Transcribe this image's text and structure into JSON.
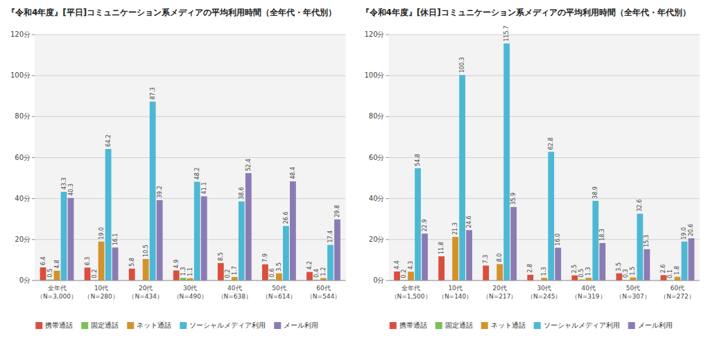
{
  "chart_data": [
    {
      "type": "bar",
      "title": "『令和4年度』[平日]コミュニケーション系メディアの平均利用時間（全年代・年代別）",
      "categories": [
        "全年代\n（N=3,000）",
        "10代\n（N=280）",
        "20代\n（N=434）",
        "30代\n（N=490）",
        "40代\n（N=638）",
        "50代\n（N=614）",
        "60代\n（N=544）"
      ],
      "series": [
        {
          "name": "携帯通話",
          "color": "#d94f3d",
          "values": [
            6.4,
            6.3,
            5.8,
            4.9,
            8.5,
            7.9,
            4.2
          ],
          "value_labels": [
            "6.4",
            "6.3",
            "5.8",
            "4.9",
            "8.5",
            "7.9",
            "4.2"
          ]
        },
        {
          "name": "固定通話",
          "color": "#7bbf5a",
          "values": [
            0.5,
            0.2,
            0.0,
            1.3,
            0.2,
            0.6,
            0.4
          ],
          "value_labels": [
            "0.5",
            "0.2",
            null,
            "1.3",
            "0.2",
            "0.6",
            "0.4"
          ]
        },
        {
          "name": "ネット通話",
          "color": "#d4922a",
          "values": [
            4.8,
            19.0,
            10.5,
            1.1,
            1.7,
            3.5,
            1.2
          ],
          "value_labels": [
            "4.8",
            "19.0",
            "10.5",
            "1.1",
            "1.7",
            "3.5",
            "1.2"
          ]
        },
        {
          "name": "ソーシャルメディア利用",
          "color": "#4db8d4",
          "values": [
            43.3,
            64.2,
            87.3,
            48.2,
            38.6,
            26.6,
            17.4
          ],
          "value_labels": [
            "43.3",
            "64.2",
            "87.3",
            "48.2",
            "38.6",
            "26.6",
            "17.4"
          ]
        },
        {
          "name": "メール利用",
          "color": "#8b7bb5",
          "values": [
            40.3,
            16.1,
            39.2,
            41.1,
            52.4,
            48.4,
            29.8
          ],
          "value_labels": [
            "40.3",
            "16.1",
            "39.2",
            "41.1",
            "52.4",
            "48.4",
            "29.8"
          ]
        }
      ],
      "ylim": [
        0,
        120
      ],
      "yticks": [
        {
          "value": 0,
          "label": "0分"
        },
        {
          "value": 20,
          "label": "20分"
        },
        {
          "value": 40,
          "label": "40分"
        },
        {
          "value": 60,
          "label": "60分"
        },
        {
          "value": 80,
          "label": "80分"
        },
        {
          "value": 100,
          "label": "100分"
        },
        {
          "value": 120,
          "label": "120分"
        }
      ],
      "grid": true,
      "legend": "bottom",
      "data_labels": true
    },
    {
      "type": "bar",
      "title": "『令和4年度』[休日]コミュニケーション系メディアの平均利用時間（全年代・年代別）",
      "categories": [
        "全年代\n（N=1,500）",
        "10代\n（N=140）",
        "20代\n（N=217）",
        "30代\n（N=245）",
        "40代\n（N=319）",
        "50代\n（N=307）",
        "60代\n（N=272）"
      ],
      "series": [
        {
          "name": "携帯通話",
          "color": "#d94f3d",
          "values": [
            4.4,
            11.8,
            7.3,
            2.8,
            2.5,
            3.5,
            2.6
          ],
          "value_labels": [
            "4.4",
            "11.8",
            "7.3",
            "2.8",
            "2.5",
            "3.5",
            "2.6"
          ]
        },
        {
          "name": "固定通話",
          "color": "#7bbf5a",
          "values": [
            0.2,
            0.0,
            0.0,
            0.0,
            0.5,
            0.3,
            0.1
          ],
          "value_labels": [
            "0.2",
            null,
            null,
            null,
            "0.5",
            "0.3",
            "0.1"
          ]
        },
        {
          "name": "ネット通話",
          "color": "#d4922a",
          "values": [
            4.3,
            21.3,
            8.0,
            1.3,
            1.3,
            1.5,
            1.8
          ],
          "value_labels": [
            "4.3",
            "21.3",
            "8.0",
            "1.3",
            "1.3",
            "1.5",
            "1.8"
          ]
        },
        {
          "name": "ソーシャルメディア利用",
          "color": "#4db8d4",
          "values": [
            54.8,
            100.3,
            115.7,
            62.8,
            38.9,
            32.6,
            19.0
          ],
          "value_labels": [
            "54.8",
            "100.3",
            "115.7",
            "62.8",
            "38.9",
            "32.6",
            "19.0"
          ]
        },
        {
          "name": "メール利用",
          "color": "#8b7bb5",
          "values": [
            22.9,
            24.6,
            35.9,
            16.0,
            18.3,
            15.3,
            20.6
          ],
          "value_labels": [
            "22.9",
            "24.6",
            "35.9",
            "16.0",
            "18.3",
            "15.3",
            "20.6"
          ]
        }
      ],
      "ylim": [
        0,
        120
      ],
      "yticks": [
        {
          "value": 0,
          "label": "0分"
        },
        {
          "value": 20,
          "label": "20分"
        },
        {
          "value": 40,
          "label": "40分"
        },
        {
          "value": 60,
          "label": "60分"
        },
        {
          "value": 80,
          "label": "80分"
        },
        {
          "value": 100,
          "label": "100分"
        },
        {
          "value": 120,
          "label": "120分"
        }
      ],
      "grid": true,
      "legend": "bottom",
      "data_labels": true
    }
  ]
}
